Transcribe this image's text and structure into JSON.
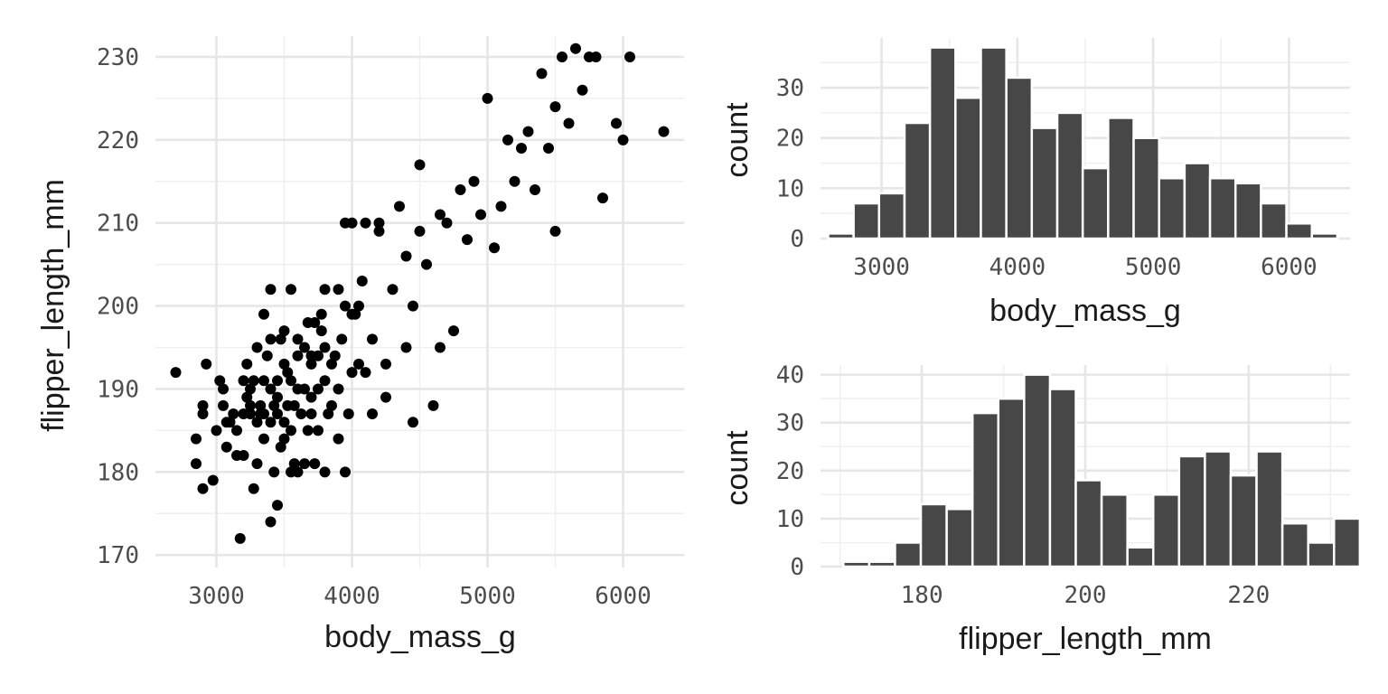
{
  "chart_data": [
    {
      "type": "scatter",
      "xlabel": "body_mass_g",
      "ylabel": "flipper_length_mm",
      "xlim": [
        2550,
        6450
      ],
      "ylim": [
        168.5,
        232.5
      ],
      "xticks": [
        3000,
        4000,
        5000,
        6000
      ],
      "yticks": [
        170,
        180,
        190,
        200,
        210,
        220,
        230
      ],
      "grid": true,
      "points": [
        [
          2700,
          192
        ],
        [
          2850,
          184
        ],
        [
          2850,
          181
        ],
        [
          2900,
          178
        ],
        [
          2900,
          188
        ],
        [
          2900,
          187
        ],
        [
          2925,
          193
        ],
        [
          2975,
          179
        ],
        [
          3000,
          185
        ],
        [
          3025,
          191
        ],
        [
          3050,
          190
        ],
        [
          3050,
          188
        ],
        [
          3075,
          186
        ],
        [
          3075,
          183
        ],
        [
          3100,
          186
        ],
        [
          3125,
          187
        ],
        [
          3150,
          185
        ],
        [
          3150,
          182
        ],
        [
          3175,
          172
        ],
        [
          3200,
          187
        ],
        [
          3200,
          191
        ],
        [
          3200,
          182
        ],
        [
          3225,
          193
        ],
        [
          3225,
          189
        ],
        [
          3250,
          188
        ],
        [
          3250,
          190
        ],
        [
          3250,
          187
        ],
        [
          3275,
          178
        ],
        [
          3275,
          191
        ],
        [
          3300,
          186
        ],
        [
          3300,
          195
        ],
        [
          3300,
          181
        ],
        [
          3325,
          187
        ],
        [
          3325,
          188
        ],
        [
          3350,
          184
        ],
        [
          3350,
          199
        ],
        [
          3350,
          191
        ],
        [
          3350,
          187
        ],
        [
          3375,
          194
        ],
        [
          3400,
          202
        ],
        [
          3400,
          190
        ],
        [
          3400,
          186
        ],
        [
          3400,
          174
        ],
        [
          3400,
          196
        ],
        [
          3425,
          188
        ],
        [
          3425,
          180
        ],
        [
          3450,
          176
        ],
        [
          3450,
          189
        ],
        [
          3450,
          187
        ],
        [
          3450,
          191
        ],
        [
          3475,
          196
        ],
        [
          3475,
          183
        ],
        [
          3500,
          184
        ],
        [
          3500,
          193
        ],
        [
          3500,
          197
        ],
        [
          3500,
          186
        ],
        [
          3525,
          188
        ],
        [
          3525,
          192
        ],
        [
          3550,
          180
        ],
        [
          3550,
          191
        ],
        [
          3550,
          185
        ],
        [
          3550,
          202
        ],
        [
          3575,
          181
        ],
        [
          3575,
          188
        ],
        [
          3600,
          194
        ],
        [
          3600,
          196
        ],
        [
          3600,
          190
        ],
        [
          3600,
          180
        ],
        [
          3625,
          187
        ],
        [
          3650,
          195
        ],
        [
          3650,
          181
        ],
        [
          3650,
          190
        ],
        [
          3675,
          198
        ],
        [
          3675,
          185
        ],
        [
          3700,
          193
        ],
        [
          3700,
          189
        ],
        [
          3700,
          187
        ],
        [
          3700,
          194
        ],
        [
          3725,
          181
        ],
        [
          3725,
          198
        ],
        [
          3750,
          185
        ],
        [
          3750,
          190
        ],
        [
          3750,
          194
        ],
        [
          3775,
          199
        ],
        [
          3775,
          197
        ],
        [
          3800,
          180
        ],
        [
          3800,
          202
        ],
        [
          3800,
          191
        ],
        [
          3800,
          195
        ],
        [
          3825,
          187
        ],
        [
          3850,
          193
        ],
        [
          3850,
          188
        ],
        [
          3875,
          194
        ],
        [
          3900,
          190
        ],
        [
          3900,
          184
        ],
        [
          3900,
          202
        ],
        [
          3925,
          196
        ],
        [
          3950,
          180
        ],
        [
          3950,
          200
        ],
        [
          3950,
          210
        ],
        [
          3975,
          187
        ],
        [
          4000,
          192
        ],
        [
          4000,
          199
        ],
        [
          4000,
          210
        ],
        [
          4025,
          199
        ],
        [
          4050,
          200
        ],
        [
          4050,
          193
        ],
        [
          4075,
          203
        ],
        [
          4100,
          210
        ],
        [
          4100,
          192
        ],
        [
          4150,
          187
        ],
        [
          4150,
          196
        ],
        [
          4200,
          209
        ],
        [
          4200,
          210
        ],
        [
          4250,
          193
        ],
        [
          4250,
          189
        ],
        [
          4300,
          202
        ],
        [
          4350,
          212
        ],
        [
          4400,
          195
        ],
        [
          4400,
          206
        ],
        [
          4450,
          200
        ],
        [
          4450,
          186
        ],
        [
          4500,
          209
        ],
        [
          4500,
          217
        ],
        [
          4550,
          205
        ],
        [
          4600,
          188
        ],
        [
          4650,
          195
        ],
        [
          4650,
          211
        ],
        [
          4700,
          210
        ],
        [
          4750,
          197
        ],
        [
          4800,
          214
        ],
        [
          4850,
          208
        ],
        [
          4900,
          215
        ],
        [
          4950,
          211
        ],
        [
          5000,
          225
        ],
        [
          5050,
          207
        ],
        [
          5100,
          212
        ],
        [
          5150,
          220
        ],
        [
          5200,
          215
        ],
        [
          5250,
          219
        ],
        [
          5300,
          221
        ],
        [
          5350,
          214
        ],
        [
          5400,
          228
        ],
        [
          5450,
          219
        ],
        [
          5500,
          209
        ],
        [
          5500,
          224
        ],
        [
          5550,
          230
        ],
        [
          5600,
          222
        ],
        [
          5650,
          231
        ],
        [
          5700,
          226
        ],
        [
          5750,
          230
        ],
        [
          5800,
          230
        ],
        [
          5850,
          213
        ],
        [
          5950,
          222
        ],
        [
          6000,
          220
        ],
        [
          6050,
          230
        ],
        [
          6300,
          221
        ]
      ]
    },
    {
      "type": "bar",
      "xlabel": "body_mass_g",
      "ylabel": "count",
      "xlim": [
        2550,
        6450
      ],
      "ylim": [
        0,
        39.9
      ],
      "xticks": [
        3000,
        4000,
        5000,
        6000
      ],
      "yticks": [
        0,
        10,
        20,
        30
      ],
      "grid": true,
      "bin_start": 2606.25,
      "bin_width": 187.5,
      "values": [
        1,
        7,
        9,
        23,
        38,
        28,
        38,
        32,
        22,
        25,
        14,
        24,
        20,
        12,
        15,
        12,
        11,
        7,
        3,
        1
      ]
    },
    {
      "type": "bar",
      "xlabel": "flipper_length_mm",
      "ylabel": "count",
      "xlim": [
        167.6,
        232.4
      ],
      "ylim": [
        0,
        42
      ],
      "xticks": [
        180,
        200,
        220
      ],
      "yticks": [
        0,
        10,
        20,
        30,
        40
      ],
      "grid": true,
      "bin_start": 170.4,
      "bin_width": 3.16,
      "values": [
        1,
        1,
        5,
        13,
        12,
        32,
        35,
        40,
        37,
        18,
        15,
        4,
        15,
        23,
        24,
        19,
        24,
        9,
        5,
        10
      ]
    }
  ]
}
